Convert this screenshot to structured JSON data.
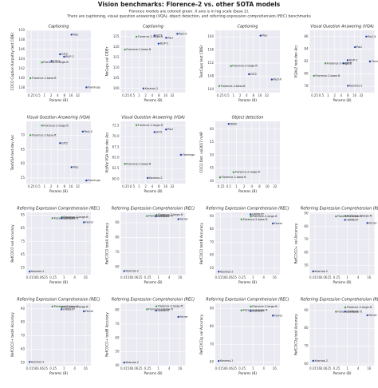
{
  "figure": {
    "title": "Vision benchmarks: Florence-2 vs. other SOTA models",
    "subtitle": [
      "Florence models are colored green. X axis is in log scale (base 2).",
      "There are captioning, visual question answering (VQA), object detection, and referring expression comprehension (REC) benchmarks"
    ]
  },
  "chart_data": [
    {
      "type": "scatter",
      "title": "Captioning",
      "xlabel": "Params (B)",
      "ylabel": "COCO Caption Karpathy test CIDEr",
      "xscale": "log2",
      "grid": true,
      "xlim": [
        0.15,
        128
      ],
      "xticks": [
        0.25,
        0.5,
        1,
        2,
        4,
        8,
        16,
        32
      ],
      "ylim": [
        137,
        150
      ],
      "yticks": [
        138,
        140,
        142,
        144,
        146,
        148,
        150
      ],
      "labels": [
        "Florence-2-large-ft",
        "Florence-2-base-ft",
        "PaLI",
        "GIT2",
        "CoCa",
        "BLIP-2",
        "Flamingo"
      ],
      "x": [
        0.77,
        0.23,
        17,
        5.1,
        2.1,
        7.8,
        80
      ],
      "values": [
        143.3,
        140.0,
        149.1,
        145.0,
        143.6,
        144.5,
        138.1
      ],
      "colors": [
        "#3aa13a",
        "#3aa13a",
        "#1f3fb3",
        "#1f3fb3",
        "#1f3fb3",
        "#1f3fb3",
        "#1f3fb3"
      ]
    },
    {
      "type": "scatter",
      "title": "Captioning",
      "xlabel": "Params (B)",
      "ylabel": "NoCaps val CIDEr",
      "xscale": "log2",
      "grid": true,
      "xlim": [
        0.15,
        128
      ],
      "xticks": [
        0.25,
        0.5,
        1,
        2,
        4,
        8,
        16,
        32
      ],
      "ylim": [
        98,
        128
      ],
      "yticks": [
        100,
        105,
        110,
        115,
        120,
        125
      ],
      "labels": [
        "Florence-2-large-ft",
        "Florence-2-base-ft",
        "PaLI",
        "PaLI-X",
        "GIT2",
        "BLIP-2",
        "Kosmos-2"
      ],
      "x": [
        0.77,
        0.23,
        17,
        55,
        5.1,
        7.8,
        1.6
      ],
      "values": [
        124.9,
        118.7,
        124.4,
        126.3,
        125.5,
        121.6,
        100.0
      ],
      "colors": [
        "#3aa13a",
        "#3aa13a",
        "#1f3fb3",
        "#1f3fb3",
        "#1f3fb3",
        "#1f3fb3",
        "#1f3fb3"
      ]
    },
    {
      "type": "scatter",
      "title": "Captioning",
      "xlabel": "Params (B)",
      "ylabel": "TextCaps test CIDEr",
      "xscale": "log2",
      "grid": true,
      "xlim": [
        0.15,
        128
      ],
      "xticks": [
        0.25,
        0.5,
        1,
        2,
        4,
        8,
        16,
        32
      ],
      "ylim": [
        143,
        162
      ],
      "yticks": [
        144,
        148,
        152,
        156,
        160
      ],
      "labels": [
        "Florence-2-large-ft",
        "Florence-2-base-ft",
        "PaLI",
        "PaLI-X",
        "GIT2"
      ],
      "x": [
        0.77,
        0.23,
        17,
        55,
        5.1
      ],
      "values": [
        151.1,
        145.0,
        160.4,
        147.0,
        148.6
      ],
      "colors": [
        "#3aa13a",
        "#3aa13a",
        "#1f3fb3",
        "#1f3fb3",
        "#1f3fb3"
      ]
    },
    {
      "type": "scatter",
      "title": "Visual Question Answering (VQA)",
      "xlabel": "Params (B)",
      "ylabel": "VQAv2 test-dev Acc",
      "xscale": "log2",
      "grid": true,
      "xlim": [
        0.15,
        128
      ],
      "xticks": [
        0.25,
        0.5,
        1,
        2,
        4,
        8,
        16,
        32
      ],
      "ylim": [
        77,
        87
      ],
      "yticks": [
        78,
        80,
        82,
        84,
        86
      ],
      "labels": [
        "Florence-2-large-ft",
        "Florence-2-base-ft",
        "PaLI-X",
        "PaLI",
        "GIT2",
        "BLIP-2",
        "Flamingo",
        "Kosmos-2"
      ],
      "x": [
        0.77,
        0.23,
        55,
        17,
        5.1,
        7.8,
        80,
        8
      ],
      "values": [
        81.7,
        79.7,
        86.0,
        84.3,
        81.7,
        82.2,
        82.0,
        78.1
      ],
      "colors": [
        "#3aa13a",
        "#3aa13a",
        "#1f3fb3",
        "#1f3fb3",
        "#1f3fb3",
        "#1f3fb3",
        "#1f3fb3",
        "#1f3fb3"
      ]
    },
    {
      "type": "scatter",
      "title": "Visual Question Answering (VQA)",
      "xlabel": "Params (B)",
      "ylabel": "TextVQA test-dev Acc",
      "xscale": "log2",
      "grid": true,
      "xlim": [
        0.15,
        128
      ],
      "xticks": [
        0.25,
        0.5,
        1,
        2,
        4,
        8,
        16,
        32
      ],
      "ylim": [
        53,
        75
      ],
      "yticks": [
        55,
        60,
        65,
        70
      ],
      "labels": [
        "Florence-2-large-ft",
        "Florence-2-base-ft",
        "GIT2",
        "PaLI",
        "PaLI-X",
        "Flamingo"
      ],
      "x": [
        0.77,
        0.23,
        5.1,
        17,
        55,
        80
      ],
      "values": [
        73.5,
        70.1,
        67.3,
        58.8,
        71.4,
        54.1
      ],
      "colors": [
        "#3aa13a",
        "#3aa13a",
        "#1f3fb3",
        "#1f3fb3",
        "#1f3fb3",
        "#1f3fb3"
      ]
    },
    {
      "type": "scatter",
      "title": "Visual Question Answering (VQA)",
      "xlabel": "Params (B)",
      "ylabel": "VizWiz VQA test-dev Acc",
      "xscale": "log2",
      "grid": true,
      "xlim": [
        0.15,
        128
      ],
      "xticks": [
        0.25,
        0.5,
        1,
        2,
        4,
        8,
        16,
        32
      ],
      "ylim": [
        59,
        73.5
      ],
      "yticks": [
        {
          "value": 60,
          "label": "60.0"
        },
        62.5,
        {
          "value": 65,
          "label": "65.0"
        },
        67.5,
        {
          "value": 70,
          "label": "70.0"
        },
        72.5
      ],
      "labels": [
        "Florence-2-large-ft",
        "Florence-2-base-ft",
        "GIT2",
        "PaLI",
        "Flamingo",
        "Kosmos-2"
      ],
      "x": [
        0.77,
        0.23,
        5.1,
        17,
        80,
        2.5
      ],
      "values": [
        72.6,
        63.6,
        71.0,
        71.6,
        65.7,
        60.3
      ],
      "colors": [
        "#3aa13a",
        "#3aa13a",
        "#1f3fb3",
        "#1f3fb3",
        "#1f3fb3",
        "#1f3fb3"
      ]
    },
    {
      "type": "scatter",
      "title": "Object detection",
      "xlabel": "Params (B)",
      "ylabel": "COCO Det. val2017 mAP",
      "xscale": "log2",
      "grid": true,
      "xlim": [
        0.15,
        50
      ],
      "xticks": [
        0.25,
        0.5,
        1,
        2,
        4,
        8,
        16,
        32
      ],
      "ylim": [
        39,
        63
      ],
      "yticks": [
        40,
        45,
        50,
        55,
        60
      ],
      "labels": [
        "DINO",
        "Florence-2-large-ft",
        "Florence-2-base-ft"
      ],
      "x": [
        0.5,
        0.77,
        0.23
      ],
      "values": [
        62.0,
        43.4,
        41.4
      ],
      "colors": [
        "#1f3fb3",
        "#3aa13a",
        "#3aa13a"
      ]
    },
    {
      "type": "scatter",
      "title": "Referring Expression Comprehension (REC)",
      "xlabel": "Params (B)",
      "ylabel": "RefCOCO val Accuracy",
      "xscale": "log2",
      "grid": true,
      "xlim": [
        0.008,
        32
      ],
      "xticks": [
        0.0156,
        0.0625,
        0.25,
        1,
        4,
        16
      ],
      "ylim": [
        50,
        97
      ],
      "yticks": [
        55,
        65,
        75,
        85,
        95
      ],
      "labels": [
        "Florence-2-large-ft",
        "Florence-2-base-ft",
        "UNINEXT",
        "Ferret",
        "Kosmos-2"
      ],
      "x": [
        0.77,
        0.23,
        0.74,
        13,
        0.0123
      ],
      "values": [
        93.4,
        92.6,
        92.6,
        89.5,
        52.3
      ],
      "colors": [
        "#3aa13a",
        "#3aa13a",
        "#1f3fb3",
        "#1f3fb3",
        "#1f3fb3"
      ]
    },
    {
      "type": "scatter",
      "title": "Referring Expression Comprehension (REC)",
      "xlabel": "Params (B)",
      "ylabel": "RefCOCO testA Accuracy",
      "xscale": "log2",
      "grid": true,
      "xlim": [
        0.008,
        32
      ],
      "xticks": [
        0.0156,
        0.0625,
        0.25,
        1,
        4,
        16
      ],
      "ylim": [
        55,
        97
      ],
      "yticks": [
        60,
        70,
        80,
        90
      ],
      "labels": [
        "Florence-2-large-ft",
        "Florence-2-base-ft",
        "UNINEXT",
        "Ferret",
        "Kosmos-2"
      ],
      "x": [
        0.77,
        0.23,
        0.74,
        13,
        0.0123
      ],
      "values": [
        95.3,
        94.5,
        94.3,
        92.4,
        57.4
      ],
      "colors": [
        "#3aa13a",
        "#3aa13a",
        "#1f3fb3",
        "#1f3fb3",
        "#1f3fb3"
      ]
    },
    {
      "type": "scatter",
      "title": "Referring Expression Comprehension (REC)",
      "xlabel": "Params (B)",
      "ylabel": "RefCOCO testB Accuracy",
      "xscale": "log2",
      "grid": true,
      "xlim": [
        0.008,
        32
      ],
      "xticks": [
        0.0156,
        0.0625,
        0.25,
        1,
        4,
        16
      ],
      "ylim": [
        45,
        93
      ],
      "yticks": [
        50,
        60,
        70,
        80,
        90
      ],
      "labels": [
        "Florence-2-large-ft",
        "Florence-2-base-ft",
        "UNINEXT",
        "Ferret",
        "Kosmos-2"
      ],
      "x": [
        0.77,
        0.23,
        0.74,
        13,
        0.0123
      ],
      "values": [
        90.0,
        87.6,
        91.5,
        84.4,
        47.3
      ],
      "colors": [
        "#3aa13a",
        "#3aa13a",
        "#1f3fb3",
        "#1f3fb3",
        "#1f3fb3"
      ]
    },
    {
      "type": "scatter",
      "title": "Referring Expression Comprehension (REC)",
      "xlabel": "Params (B)",
      "ylabel": "RefCOCO+ val Accuracy",
      "xscale": "log2",
      "grid": true,
      "xlim": [
        0.008,
        32
      ],
      "xticks": [
        0.0156,
        0.0625,
        0.25,
        1,
        4,
        16
      ],
      "ylim": [
        43,
        91
      ],
      "yticks": [
        50,
        60,
        70,
        80,
        90
      ],
      "labels": [
        "Florence-2-large-ft",
        "Florence-2-base-ft",
        "UNINEXT",
        "Ferret",
        "Kosmos-2"
      ],
      "x": [
        0.77,
        0.23,
        0.74,
        13,
        0.0123
      ],
      "values": [
        88.3,
        87.9,
        85.2,
        82.8,
        45.5
      ],
      "colors": [
        "#3aa13a",
        "#3aa13a",
        "#1f3fb3",
        "#1f3fb3",
        "#1f3fb3"
      ]
    },
    {
      "type": "scatter",
      "title": "Referring Expression Comprehension (REC)",
      "xlabel": "Params (B)",
      "ylabel": "RefCOCO+ testA Accuracy",
      "xscale": "log2",
      "grid": true,
      "xlim": [
        0.008,
        32
      ],
      "xticks": [
        0.0156,
        0.0625,
        0.25,
        1,
        4,
        16
      ],
      "ylim": [
        48,
        94
      ],
      "yticks": [
        50,
        60,
        70,
        80,
        90
      ],
      "labels": [
        "Florence-2-large-ft",
        "Florence-2-base-ft",
        "UNINEXT",
        "Ferret",
        "Kosmos-2"
      ],
      "x": [
        0.77,
        0.23,
        0.74,
        13,
        0.0123
      ],
      "values": [
        91.2,
        91.7,
        89.6,
        88.1,
        50.7
      ],
      "colors": [
        "#3aa13a",
        "#3aa13a",
        "#1f3fb3",
        "#1f3fb3",
        "#1f3fb3"
      ]
    },
    {
      "type": "scatter",
      "title": "Referring Expression Comprehension (REC)",
      "xlabel": "Params (B)",
      "ylabel": "RefCOCO+ testB Accuracy",
      "xscale": "log2",
      "grid": true,
      "xlim": [
        0.008,
        32
      ],
      "xticks": [
        0.0156,
        0.0625,
        0.25,
        1,
        4,
        16
      ],
      "ylim": [
        40,
        85
      ],
      "yticks": [
        40,
        50,
        60,
        70,
        80
      ],
      "labels": [
        "Florence-2-large-ft",
        "Florence-2-base-ft",
        "UNINEXT",
        "Ferret",
        "Kosmos-2"
      ],
      "x": [
        0.77,
        0.23,
        0.74,
        13,
        0.0123
      ],
      "values": [
        82.9,
        80.7,
        79.8,
        75.2,
        42.2
      ],
      "colors": [
        "#3aa13a",
        "#3aa13a",
        "#1f3fb3",
        "#1f3fb3",
        "#1f3fb3"
      ]
    },
    {
      "type": "scatter",
      "title": "Referring Expression Comprehension (REC)",
      "xlabel": "Params (B)",
      "ylabel": "RefCOCOg val Accuracy",
      "xscale": "log2",
      "grid": true,
      "xlim": [
        0.008,
        32
      ],
      "xticks": [
        0.0156,
        0.0625,
        0.25,
        1,
        4,
        16
      ],
      "ylim": [
        58,
        93
      ],
      "yticks": [
        60,
        70,
        80,
        90
      ],
      "labels": [
        "Florence-2-large-ft",
        "Florence-2-base-ft",
        "UNINEXT",
        "Ferret",
        "Kosmos-2"
      ],
      "x": [
        0.77,
        0.23,
        0.74,
        13,
        0.0123
      ],
      "values": [
        91.2,
        89.1,
        88.7,
        86.1,
        60.6
      ],
      "colors": [
        "#3aa13a",
        "#3aa13a",
        "#1f3fb3",
        "#1f3fb3",
        "#1f3fb3"
      ]
    },
    {
      "type": "scatter",
      "title": "Referring Expression Comprehension (REC)",
      "xlabel": "Params (B)",
      "ylabel": "RefCOCOg test Accuracy",
      "xscale": "log2",
      "grid": true,
      "xlim": [
        0.008,
        32
      ],
      "xticks": [
        0.0156,
        0.0625,
        0.25,
        1,
        4,
        16
      ],
      "ylim": [
        59,
        94
      ],
      "yticks": [
        60,
        70,
        80,
        90
      ],
      "labels": [
        "Florence-2-large-ft",
        "Florence-2-base-ft",
        "UNINEXT",
        "Ferret",
        "Kosmos-2"
      ],
      "x": [
        0.77,
        0.23,
        0.74,
        13,
        0.0123
      ],
      "values": [
        91.7,
        89.3,
        89.4,
        87.3,
        61.7
      ],
      "colors": [
        "#3aa13a",
        "#3aa13a",
        "#1f3fb3",
        "#1f3fb3",
        "#1f3fb3"
      ]
    }
  ]
}
